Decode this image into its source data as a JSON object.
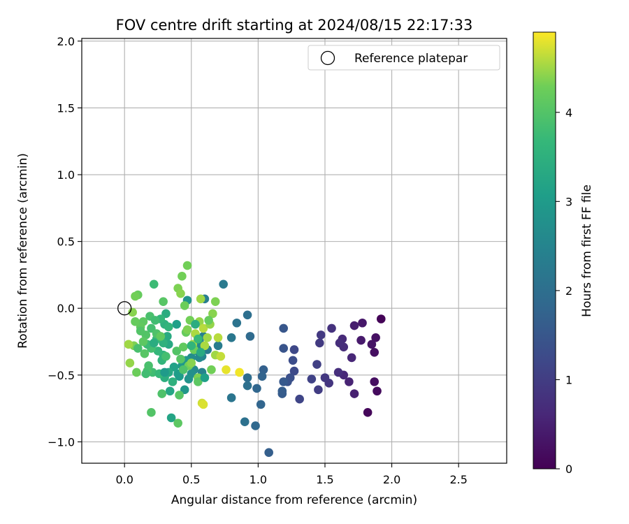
{
  "chart_data": {
    "type": "scatter",
    "title": "FOV centre drift starting at 2024/08/15 22:17:33",
    "xlabel": "Angular distance from reference (arcmin)",
    "ylabel": "Rotation from reference (arcmin)",
    "xlim": [
      -0.32,
      2.86
    ],
    "ylim": [
      -1.16,
      2.02
    ],
    "xticks": [
      0.0,
      0.5,
      1.0,
      1.5,
      2.0,
      2.5
    ],
    "xtick_labels": [
      "0.0",
      "0.5",
      "1.0",
      "1.5",
      "2.0",
      "2.5"
    ],
    "yticks": [
      -1.0,
      -0.5,
      0.0,
      0.5,
      1.0,
      1.5,
      2.0
    ],
    "ytick_labels": [
      "−1.0",
      "−0.5",
      "0.0",
      "0.5",
      "1.0",
      "1.5",
      "2.0"
    ],
    "grid": true,
    "legend": {
      "position": "top-right",
      "entries": [
        "Reference platepar"
      ]
    },
    "reference_point": {
      "x": 0.0,
      "y": 0.0
    },
    "colorbar": {
      "label": "Hours from first FF file",
      "min": 0,
      "max": 4.9,
      "ticks": [
        0,
        1,
        2,
        3,
        4
      ],
      "tick_labels": [
        "0",
        "1",
        "2",
        "3",
        "4"
      ],
      "colormap": "viridis"
    },
    "series": [
      {
        "points": [
          [
            1.92,
            -0.08,
            0.05
          ],
          [
            1.82,
            -0.78,
            0.1
          ],
          [
            1.89,
            -0.62,
            0.15
          ],
          [
            1.87,
            -0.55,
            0.2
          ],
          [
            1.87,
            -0.33,
            0.22
          ],
          [
            1.88,
            -0.22,
            0.25
          ],
          [
            1.85,
            -0.27,
            0.3
          ],
          [
            1.78,
            -0.11,
            0.35
          ],
          [
            1.77,
            -0.24,
            0.4
          ],
          [
            1.72,
            -0.13,
            0.45
          ],
          [
            1.72,
            -0.64,
            0.5
          ],
          [
            1.68,
            -0.55,
            0.55
          ],
          [
            1.7,
            -0.37,
            0.6
          ],
          [
            1.64,
            -0.5,
            0.62
          ],
          [
            1.63,
            -0.23,
            0.65
          ],
          [
            1.64,
            -0.29,
            0.7
          ],
          [
            1.61,
            -0.26,
            0.72
          ],
          [
            1.6,
            -0.48,
            0.75
          ],
          [
            1.55,
            -0.15,
            0.8
          ],
          [
            1.53,
            -0.56,
            0.85
          ],
          [
            1.5,
            -0.52,
            0.9
          ],
          [
            1.47,
            -0.2,
            0.92
          ],
          [
            1.46,
            -0.26,
            0.95
          ],
          [
            1.45,
            -0.61,
            1.0
          ],
          [
            1.44,
            -0.42,
            1.05
          ],
          [
            1.4,
            -0.53,
            1.1
          ],
          [
            1.31,
            -0.68,
            1.15
          ],
          [
            1.27,
            -0.31,
            1.2
          ],
          [
            1.27,
            -0.47,
            1.25
          ],
          [
            1.26,
            -0.39,
            1.3
          ],
          [
            1.24,
            -0.52,
            1.35
          ],
          [
            1.22,
            -0.55,
            1.4
          ],
          [
            1.19,
            -0.3,
            1.45
          ],
          [
            1.19,
            -0.15,
            1.5
          ],
          [
            1.19,
            -0.55,
            1.55
          ],
          [
            1.18,
            -0.64,
            1.6
          ],
          [
            1.18,
            -0.62,
            1.62
          ],
          [
            1.08,
            -1.08,
            1.65
          ],
          [
            1.04,
            -0.46,
            1.7
          ],
          [
            1.03,
            -0.51,
            1.75
          ],
          [
            1.02,
            -0.72,
            1.8
          ],
          [
            0.99,
            -0.6,
            1.82
          ],
          [
            0.98,
            -0.88,
            1.85
          ],
          [
            0.94,
            -0.21,
            1.9
          ],
          [
            0.92,
            -0.52,
            1.95
          ],
          [
            0.92,
            -0.05,
            2.0
          ],
          [
            0.92,
            -0.58,
            2.02
          ],
          [
            0.9,
            -0.85,
            2.05
          ],
          [
            0.84,
            -0.11,
            2.1
          ],
          [
            0.8,
            -0.67,
            2.15
          ],
          [
            0.8,
            -0.22,
            2.2
          ],
          [
            0.74,
            0.18,
            2.25
          ],
          [
            0.7,
            -0.28,
            2.3
          ],
          [
            0.62,
            -0.31,
            2.32
          ],
          [
            0.6,
            0.07,
            2.35
          ],
          [
            0.59,
            -0.21,
            2.4
          ],
          [
            0.58,
            -0.48,
            2.45
          ],
          [
            0.58,
            -0.36,
            2.5
          ],
          [
            0.57,
            -0.27,
            2.55
          ],
          [
            0.56,
            -0.37,
            2.6
          ],
          [
            0.54,
            -0.32,
            2.62
          ],
          [
            0.52,
            -0.46,
            2.65
          ],
          [
            0.5,
            -0.37,
            2.7
          ],
          [
            0.5,
            -0.49,
            2.75
          ],
          [
            0.48,
            -0.53,
            2.8
          ],
          [
            0.47,
            0.06,
            2.85
          ],
          [
            0.46,
            -0.39,
            2.9
          ],
          [
            0.45,
            -0.61,
            2.92
          ],
          [
            0.43,
            -0.43,
            2.95
          ],
          [
            0.41,
            -0.51,
            3.0
          ],
          [
            0.4,
            -0.49,
            3.05
          ],
          [
            0.39,
            -0.12,
            3.1
          ],
          [
            0.37,
            -0.44,
            3.15
          ],
          [
            0.35,
            -0.82,
            3.2
          ],
          [
            0.34,
            -0.62,
            3.25
          ],
          [
            0.33,
            -0.27,
            3.3
          ],
          [
            0.32,
            -0.21,
            3.35
          ],
          [
            0.31,
            -0.04,
            3.4
          ],
          [
            0.3,
            -0.52,
            3.45
          ],
          [
            0.3,
            -0.12,
            3.5
          ],
          [
            0.29,
            -0.26,
            3.52
          ],
          [
            0.29,
            -0.35,
            3.55
          ],
          [
            0.28,
            -0.39,
            3.6
          ],
          [
            0.27,
            -0.08,
            3.62
          ],
          [
            0.25,
            -0.32,
            3.65
          ],
          [
            0.24,
            -0.23,
            3.7
          ],
          [
            0.22,
            0.18,
            3.75
          ],
          [
            0.21,
            -0.48,
            3.8
          ],
          [
            0.2,
            -0.3,
            3.85
          ],
          [
            0.19,
            -0.06,
            3.9
          ],
          [
            0.17,
            -0.47,
            3.95
          ],
          [
            0.16,
            -0.2,
            4.0
          ],
          [
            0.15,
            -0.34,
            4.05
          ],
          [
            0.14,
            -0.1,
            4.1
          ],
          [
            0.12,
            -0.14,
            4.15
          ],
          [
            0.1,
            0.1,
            4.2
          ],
          [
            0.09,
            -0.48,
            4.25
          ],
          [
            0.08,
            0.09,
            4.3
          ],
          [
            0.07,
            -0.28,
            4.35
          ],
          [
            0.06,
            -0.03,
            4.4
          ],
          [
            0.04,
            -0.41,
            4.45
          ],
          [
            0.03,
            -0.27,
            4.5
          ],
          [
            0.17,
            -0.27,
            3.75
          ],
          [
            0.2,
            -0.15,
            3.85
          ],
          [
            0.23,
            -0.09,
            3.8
          ],
          [
            0.26,
            -0.49,
            3.7
          ],
          [
            0.28,
            -0.64,
            3.95
          ],
          [
            0.29,
            0.05,
            4.05
          ],
          [
            0.2,
            -0.78,
            4.0
          ],
          [
            0.18,
            -0.43,
            3.9
          ],
          [
            0.16,
            -0.49,
            3.8
          ],
          [
            0.14,
            -0.25,
            4.1
          ],
          [
            0.24,
            -0.19,
            3.95
          ],
          [
            0.27,
            -0.21,
            4.15
          ],
          [
            0.31,
            -0.36,
            3.85
          ],
          [
            0.33,
            -0.14,
            3.6
          ],
          [
            0.4,
            -0.86,
            4.1
          ],
          [
            0.41,
            -0.65,
            4.05
          ],
          [
            0.43,
            0.24,
            4.3
          ],
          [
            0.4,
            0.15,
            4.35
          ],
          [
            0.42,
            0.11,
            4.4
          ],
          [
            0.45,
            0.02,
            4.25
          ],
          [
            0.47,
            0.32,
            4.3
          ],
          [
            0.39,
            -0.32,
            4.0
          ],
          [
            0.42,
            -0.38,
            4.05
          ],
          [
            0.44,
            -0.29,
            4.15
          ],
          [
            0.46,
            -0.18,
            4.2
          ],
          [
            0.48,
            -0.43,
            4.3
          ],
          [
            0.5,
            -0.41,
            4.4
          ],
          [
            0.51,
            -0.27,
            4.5
          ],
          [
            0.53,
            -0.19,
            4.55
          ],
          [
            0.55,
            -0.52,
            4.35
          ],
          [
            0.56,
            -0.1,
            4.45
          ],
          [
            0.57,
            0.07,
            4.5
          ],
          [
            0.59,
            -0.15,
            4.6
          ],
          [
            0.6,
            -0.28,
            4.55
          ],
          [
            0.62,
            -0.22,
            4.5
          ],
          [
            0.64,
            -0.12,
            4.45
          ],
          [
            0.66,
            -0.04,
            4.4
          ],
          [
            0.68,
            -0.35,
            4.5
          ],
          [
            0.7,
            -0.22,
            4.6
          ],
          [
            0.72,
            -0.36,
            4.65
          ],
          [
            0.58,
            -0.71,
            4.7
          ],
          [
            0.59,
            -0.72,
            4.75
          ],
          [
            0.76,
            -0.46,
            4.8
          ],
          [
            0.86,
            -0.48,
            4.85
          ],
          [
            0.68,
            0.05,
            4.35
          ],
          [
            0.65,
            -0.46,
            4.3
          ],
          [
            0.63,
            -0.09,
            4.2
          ],
          [
            0.55,
            -0.55,
            4.1
          ],
          [
            0.52,
            -0.31,
            4.25
          ],
          [
            0.49,
            -0.09,
            4.3
          ],
          [
            0.47,
            -0.16,
            4.35
          ],
          [
            0.44,
            -0.46,
            3.95
          ],
          [
            0.36,
            -0.55,
            3.5
          ],
          [
            0.33,
            -0.48,
            3.3
          ],
          [
            0.3,
            -0.48,
            3.0
          ],
          [
            0.5,
            -0.28,
            3.6
          ],
          [
            0.53,
            -0.12,
            3.4
          ],
          [
            0.55,
            -0.23,
            3.7
          ],
          [
            0.57,
            -0.33,
            3.35
          ],
          [
            0.6,
            -0.52,
            3.1
          ],
          [
            0.12,
            -0.17,
            4.0
          ],
          [
            0.1,
            -0.3,
            3.9
          ],
          [
            0.08,
            -0.1,
            4.2
          ],
          [
            0.22,
            -0.26,
            3.4
          ]
        ]
      }
    ]
  }
}
